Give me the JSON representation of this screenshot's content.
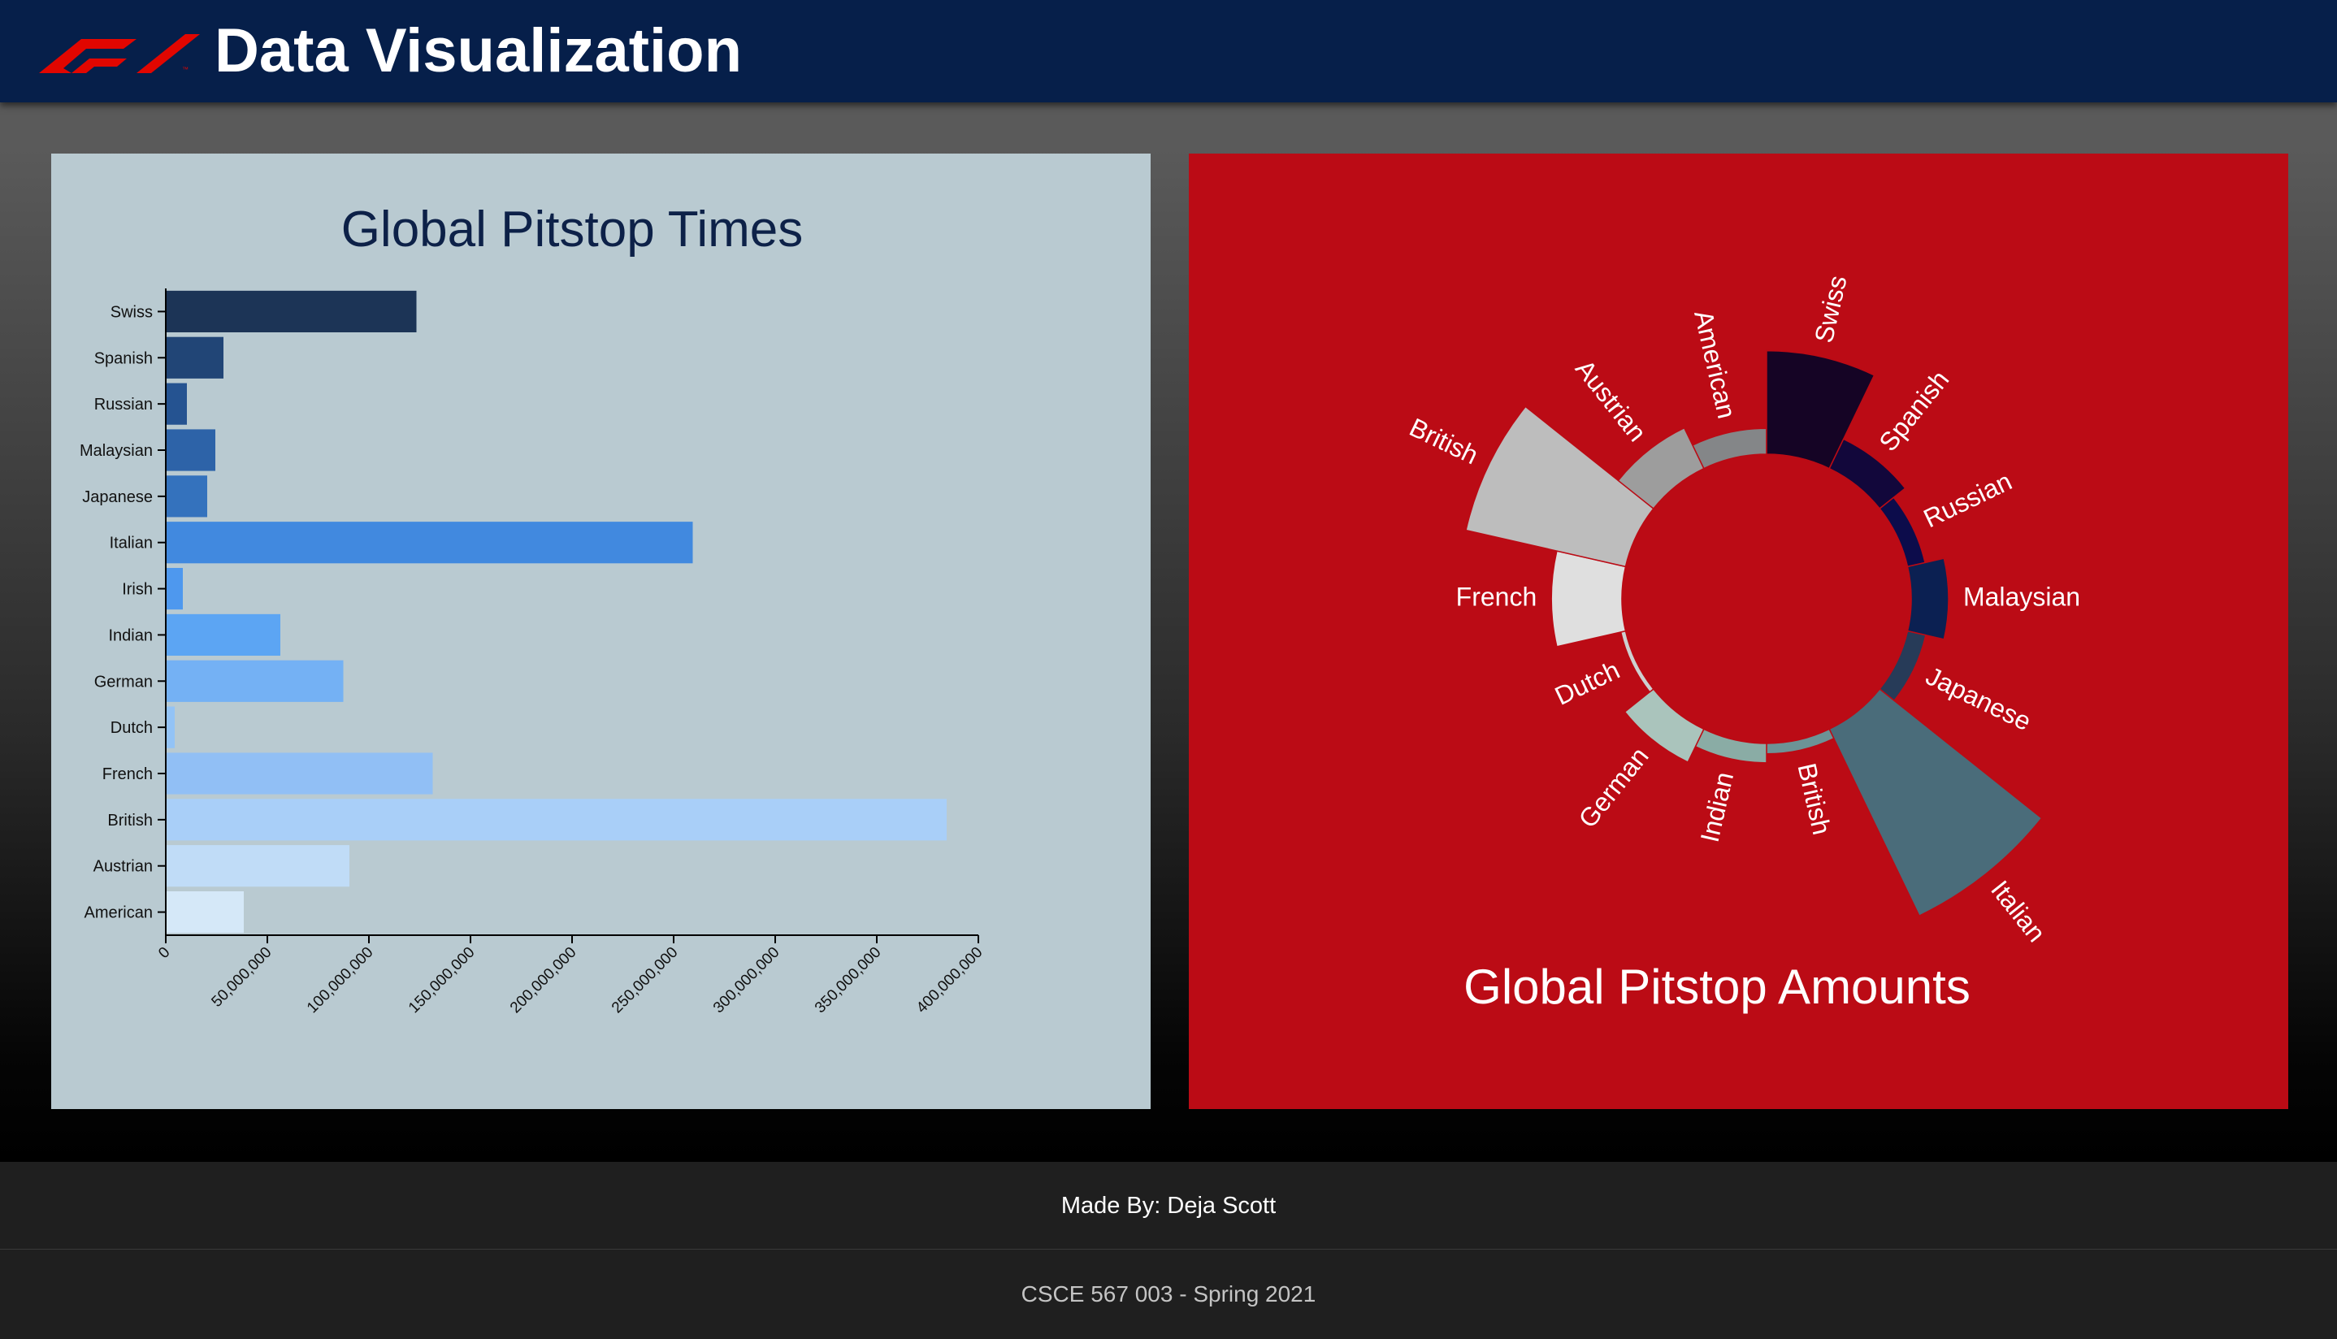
{
  "header": {
    "title": "Data Visualization",
    "logo_icon": "f1-logo-icon",
    "background": "#061f4a",
    "logo_color": "#e10600"
  },
  "footer": {
    "credit": "Made By: Deja Scott",
    "course": "CSCE 567 003 - Spring 2021"
  },
  "chart_data": [
    {
      "type": "bar",
      "orientation": "horizontal",
      "title": "Global Pitstop Times",
      "xlabel": "",
      "ylabel": "",
      "categories": [
        "Swiss",
        "Spanish",
        "Russian",
        "Malaysian",
        "Japanese",
        "Italian",
        "Irish",
        "Indian",
        "German",
        "Dutch",
        "French",
        "British",
        "Austrian",
        "American"
      ],
      "values": [
        123000000,
        28000000,
        10000000,
        24000000,
        20000000,
        259000000,
        8000000,
        56000000,
        87000000,
        4000000,
        131000000,
        384000000,
        90000000,
        38000000
      ],
      "colors": [
        "#1c3456",
        "#214576",
        "#255391",
        "#2d63a8",
        "#3472bd",
        "#4189df",
        "#4e98ee",
        "#5ca5f3",
        "#74b1f4",
        "#93c3f6",
        "#91bff5",
        "#a9cff8",
        "#c0dcf7",
        "#d5e8f8"
      ],
      "xlim": [
        0,
        400000000
      ],
      "xticks": [
        "0",
        "50,000,000",
        "100,000,000",
        "150,000,000",
        "200,000,000",
        "250,000,000",
        "300,000,000",
        "350,000,000",
        "400,000,000"
      ],
      "grid": false,
      "legend": "none",
      "panel_background": "#b9cad1",
      "title_color": "#0d2148"
    },
    {
      "type": "radial-bar",
      "title": "Global Pitstop Amounts",
      "categories": [
        "American",
        "Swiss",
        "Spanish",
        "Russian",
        "Malaysian",
        "Japanese",
        "Italian",
        "British",
        "Indian",
        "German",
        "Dutch",
        "French",
        "British",
        "Austrian"
      ],
      "labels": [
        "American",
        "Swiss",
        "Spanish",
        "Russian",
        "Malaysian",
        "Japanese",
        "Italian",
        "British",
        "Indian",
        "German",
        "Dutch",
        "French",
        "British",
        "Austrian"
      ],
      "values": [
        34,
        170,
        44,
        23,
        51,
        24,
        430,
        13,
        25,
        50,
        6,
        106,
        310,
        63
      ],
      "colors": [
        "#848688",
        "#150425",
        "#12073b",
        "#0c0c4b",
        "#0b2052",
        "#273b58",
        "#4a6c7a",
        "#6c9396",
        "#8aaca5",
        "#aac4bc",
        "#cdd0d0",
        "#dfdfdf",
        "#bdbdbd",
        "#9d9d9d"
      ],
      "inner_radius_value": 0,
      "grid": false,
      "legend": "none",
      "panel_background": "#bb0b15",
      "label_color": "#ffffff"
    }
  ]
}
